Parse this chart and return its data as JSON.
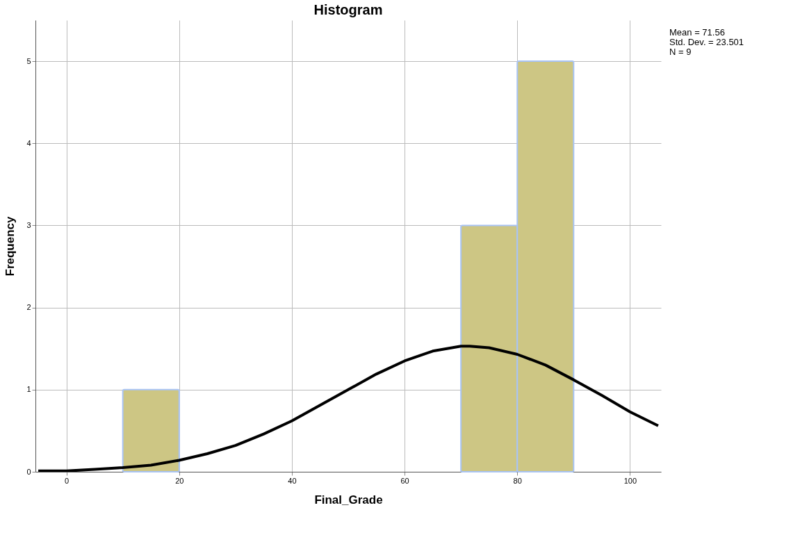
{
  "chart_data": {
    "type": "histogram",
    "title": "Histogram",
    "xlabel": "Final_Grade",
    "ylabel": "Frequency",
    "bins": [
      10,
      20,
      30,
      40,
      50,
      60,
      70,
      80,
      90
    ],
    "values": [
      1,
      0,
      0,
      0,
      0,
      0,
      3,
      5
    ],
    "color": "#cdc684",
    "series": [
      {
        "type": "line",
        "color": "#000000",
        "x": [
          -5,
          0,
          5,
          10,
          15,
          20,
          25,
          30,
          35,
          40,
          45,
          50,
          55,
          60,
          65,
          70,
          71.56,
          75,
          80,
          85,
          90,
          95,
          100,
          105
        ],
        "values": [
          0.01,
          0.01,
          0.03,
          0.05,
          0.08,
          0.14,
          0.22,
          0.32,
          0.46,
          0.62,
          0.81,
          1.0,
          1.19,
          1.35,
          1.47,
          1.53,
          1.53,
          1.51,
          1.43,
          1.3,
          1.12,
          0.93,
          0.73,
          0.56
        ]
      }
    ],
    "xlim": [
      -5.5,
      105.5
    ],
    "xticks": [
      0,
      20,
      40,
      60,
      80,
      100
    ],
    "ylim": [
      0,
      5.5
    ],
    "yticks": [
      0,
      1,
      2,
      3,
      4,
      5
    ],
    "grid": true,
    "annotations": [
      "Mean = 71.56",
      "Std. Dev. = 23.501",
      "N = 9"
    ]
  }
}
